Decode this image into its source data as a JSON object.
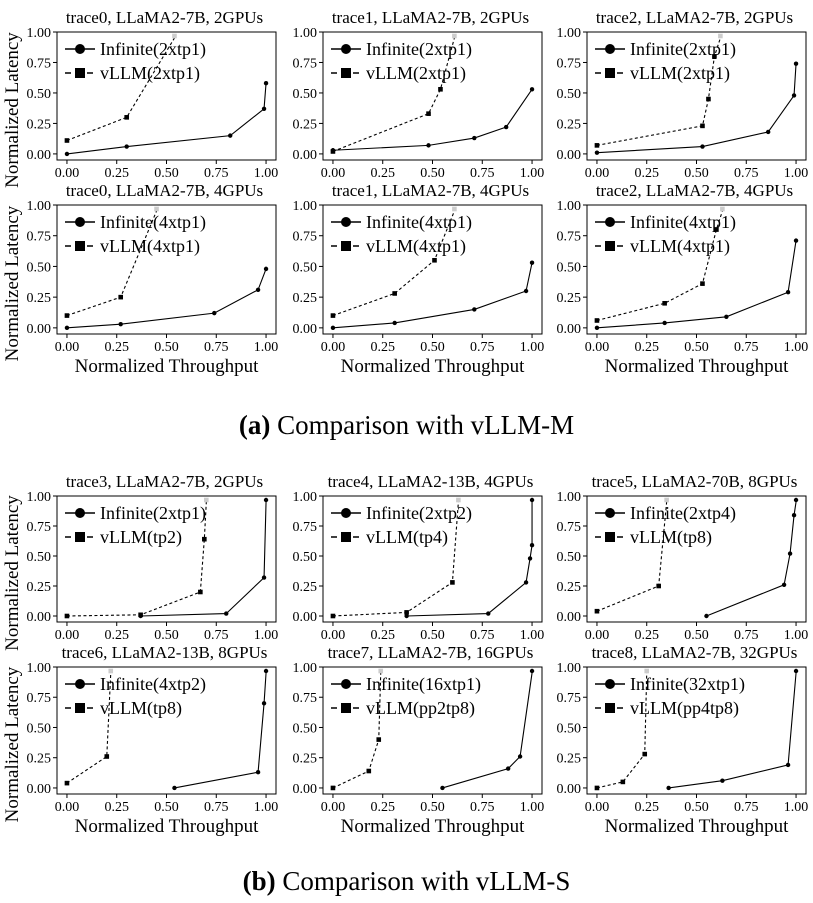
{
  "figure": {
    "y_label": "Normalized Latency",
    "x_label": "Normalized Throughput",
    "caption_a_letter": "(a)",
    "caption_a_text": "Comparison with vLLM-M",
    "caption_b_letter": "(b)",
    "caption_b_text": "Comparison with vLLM-S"
  },
  "colors": {
    "line": "#000000",
    "axis": "#000000",
    "marker_ghost": "#cccccc"
  },
  "chart_data": [
    {
      "type": "line",
      "title": "trace0, LLaMA2-7B, 2GPUs",
      "xlim": [
        -0.05,
        1.05
      ],
      "ylim": [
        -0.05,
        1.0
      ],
      "xticks": [
        "0.00",
        "0.25",
        "0.50",
        "0.75",
        "1.00"
      ],
      "yticks": [
        "0.00",
        "0.25",
        "0.50",
        "0.75",
        "1.00"
      ],
      "xlabel": "",
      "ylabel": "Normalized Latency",
      "legend": "top-left",
      "series": [
        {
          "name": "Infinite(2xtp1)",
          "marker": "circle",
          "style": "solid",
          "x": [
            0.0,
            0.3,
            0.82,
            0.99,
            1.0
          ],
          "y": [
            0.0,
            0.06,
            0.15,
            0.37,
            0.58
          ]
        },
        {
          "name": "vLLM(2xtp1)",
          "marker": "square",
          "style": "dashed",
          "x": [
            0.0,
            0.3,
            0.54
          ],
          "y": [
            0.11,
            0.3,
            1.0
          ]
        }
      ]
    },
    {
      "type": "line",
      "title": "trace1, LLaMA2-7B, 2GPUs",
      "xlim": [
        -0.05,
        1.05
      ],
      "ylim": [
        -0.05,
        1.0
      ],
      "xticks": [
        "0.00",
        "0.25",
        "0.50",
        "0.75",
        "1.00"
      ],
      "yticks": [
        "0.00",
        "0.25",
        "0.50",
        "0.75",
        "1.00"
      ],
      "xlabel": "",
      "ylabel": "",
      "legend": "top-left",
      "series": [
        {
          "name": "Infinite(2xtp1)",
          "marker": "circle",
          "style": "solid",
          "x": [
            0.0,
            0.48,
            0.71,
            0.87,
            1.0
          ],
          "y": [
            0.03,
            0.07,
            0.13,
            0.22,
            0.53
          ]
        },
        {
          "name": "vLLM(2xtp1)",
          "marker": "square",
          "style": "dashed",
          "x": [
            0.0,
            0.48,
            0.54,
            0.61
          ],
          "y": [
            0.02,
            0.33,
            0.53,
            1.0
          ]
        }
      ]
    },
    {
      "type": "line",
      "title": "trace2, LLaMA2-7B, 2GPUs",
      "xlim": [
        -0.05,
        1.05
      ],
      "ylim": [
        -0.05,
        1.0
      ],
      "xticks": [
        "0.00",
        "0.25",
        "0.50",
        "0.75",
        "1.00"
      ],
      "yticks": [
        "0.00",
        "0.25",
        "0.50",
        "0.75",
        "1.00"
      ],
      "xlabel": "",
      "ylabel": "",
      "legend": "top-left",
      "series": [
        {
          "name": "Infinite(2xtp1)",
          "marker": "circle",
          "style": "solid",
          "x": [
            0.0,
            0.53,
            0.86,
            0.99,
            1.0
          ],
          "y": [
            0.01,
            0.06,
            0.18,
            0.48,
            0.74
          ]
        },
        {
          "name": "vLLM(2xtp1)",
          "marker": "square",
          "style": "dashed",
          "x": [
            0.0,
            0.53,
            0.56,
            0.59,
            0.62
          ],
          "y": [
            0.07,
            0.23,
            0.45,
            0.8,
            1.0
          ]
        }
      ]
    },
    {
      "type": "line",
      "title": "trace0, LLaMA2-7B, 4GPUs",
      "xlim": [
        -0.05,
        1.05
      ],
      "ylim": [
        -0.05,
        1.0
      ],
      "xticks": [
        "0.00",
        "0.25",
        "0.50",
        "0.75",
        "1.00"
      ],
      "yticks": [
        "0.00",
        "0.25",
        "0.50",
        "0.75",
        "1.00"
      ],
      "xlabel": "Normalized Throughput",
      "ylabel": "Normalized Latency",
      "legend": "top-left",
      "series": [
        {
          "name": "Infinite(4xtp1)",
          "marker": "circle",
          "style": "solid",
          "x": [
            0.0,
            0.27,
            0.74,
            0.96,
            1.0
          ],
          "y": [
            0.0,
            0.03,
            0.12,
            0.31,
            0.48
          ]
        },
        {
          "name": "vLLM(4xtp1)",
          "marker": "square",
          "style": "dashed",
          "x": [
            0.0,
            0.27,
            0.45
          ],
          "y": [
            0.1,
            0.25,
            1.0
          ]
        }
      ]
    },
    {
      "type": "line",
      "title": "trace1, LLaMA2-7B, 4GPUs",
      "xlim": [
        -0.05,
        1.05
      ],
      "ylim": [
        -0.05,
        1.0
      ],
      "xticks": [
        "0.00",
        "0.25",
        "0.50",
        "0.75",
        "1.00"
      ],
      "yticks": [
        "0.00",
        "0.25",
        "0.50",
        "0.75",
        "1.00"
      ],
      "xlabel": "Normalized Throughput",
      "ylabel": "",
      "legend": "top-left",
      "series": [
        {
          "name": "Infinite(4xtp1)",
          "marker": "circle",
          "style": "solid",
          "x": [
            0.0,
            0.31,
            0.71,
            0.97,
            1.0
          ],
          "y": [
            0.0,
            0.04,
            0.15,
            0.3,
            0.53
          ]
        },
        {
          "name": "vLLM(4xtp1)",
          "marker": "square",
          "style": "dashed",
          "x": [
            0.0,
            0.31,
            0.51,
            0.61
          ],
          "y": [
            0.1,
            0.28,
            0.55,
            1.0
          ]
        }
      ]
    },
    {
      "type": "line",
      "title": "trace2, LLaMA2-7B, 4GPUs",
      "xlim": [
        -0.05,
        1.05
      ],
      "ylim": [
        -0.05,
        1.0
      ],
      "xticks": [
        "0.00",
        "0.25",
        "0.50",
        "0.75",
        "1.00"
      ],
      "yticks": [
        "0.00",
        "0.25",
        "0.50",
        "0.75",
        "1.00"
      ],
      "xlabel": "Normalized Throughput",
      "ylabel": "",
      "legend": "top-left",
      "series": [
        {
          "name": "Infinite(4xtp1)",
          "marker": "circle",
          "style": "solid",
          "x": [
            0.0,
            0.34,
            0.65,
            0.96,
            1.0
          ],
          "y": [
            0.0,
            0.04,
            0.09,
            0.29,
            0.71
          ]
        },
        {
          "name": "vLLM(4xtp1)",
          "marker": "square",
          "style": "dashed",
          "x": [
            0.0,
            0.34,
            0.53,
            0.6,
            0.63
          ],
          "y": [
            0.06,
            0.2,
            0.36,
            0.8,
            1.0
          ]
        }
      ]
    },
    {
      "type": "line",
      "title": "trace3, LLaMA2-7B, 2GPUs",
      "xlim": [
        -0.05,
        1.05
      ],
      "ylim": [
        -0.05,
        1.0
      ],
      "xticks": [
        "0.00",
        "0.25",
        "0.50",
        "0.75",
        "1.00"
      ],
      "yticks": [
        "0.00",
        "0.25",
        "0.50",
        "0.75",
        "1.00"
      ],
      "xlabel": "",
      "ylabel": "Normalized Latency",
      "legend": "top-left",
      "series": [
        {
          "name": "Infinite(2xtp1)",
          "marker": "circle",
          "style": "solid",
          "x": [
            0.37,
            0.8,
            0.99,
            1.0
          ],
          "y": [
            0.0,
            0.02,
            0.32,
            0.99
          ]
        },
        {
          "name": "vLLM(tp2)",
          "marker": "square",
          "style": "dashed",
          "x": [
            0.0,
            0.37,
            0.67,
            0.69,
            0.7
          ],
          "y": [
            0.0,
            0.01,
            0.2,
            0.64,
            1.0
          ]
        }
      ]
    },
    {
      "type": "line",
      "title": "trace4, LLaMA2-13B, 4GPUs",
      "xlim": [
        -0.05,
        1.05
      ],
      "ylim": [
        -0.05,
        1.0
      ],
      "xticks": [
        "0.00",
        "0.25",
        "0.50",
        "0.75",
        "1.00"
      ],
      "yticks": [
        "0.00",
        "0.25",
        "0.50",
        "0.75",
        "1.00"
      ],
      "xlabel": "",
      "ylabel": "",
      "legend": "top-left",
      "series": [
        {
          "name": "Infinite(2xtp2)",
          "marker": "circle",
          "style": "solid",
          "x": [
            0.37,
            0.78,
            0.97,
            0.99,
            1.0,
            1.0
          ],
          "y": [
            0.0,
            0.02,
            0.28,
            0.48,
            0.59,
            0.99
          ]
        },
        {
          "name": "vLLM(tp4)",
          "marker": "square",
          "style": "dashed",
          "x": [
            0.0,
            0.37,
            0.6,
            0.63
          ],
          "y": [
            0.0,
            0.03,
            0.28,
            1.0
          ]
        }
      ]
    },
    {
      "type": "line",
      "title": "trace5, LLaMA2-70B, 8GPUs",
      "xlim": [
        -0.05,
        1.05
      ],
      "ylim": [
        -0.05,
        1.0
      ],
      "xticks": [
        "0.00",
        "0.25",
        "0.50",
        "0.75",
        "1.00"
      ],
      "yticks": [
        "0.00",
        "0.25",
        "0.50",
        "0.75",
        "1.00"
      ],
      "xlabel": "",
      "ylabel": "",
      "legend": "top-left",
      "series": [
        {
          "name": "Infinite(2xtp4)",
          "marker": "circle",
          "style": "solid",
          "x": [
            0.55,
            0.94,
            0.97,
            0.99,
            1.0
          ],
          "y": [
            0.0,
            0.26,
            0.52,
            0.84,
            0.99
          ]
        },
        {
          "name": "vLLM(tp8)",
          "marker": "square",
          "style": "dashed",
          "x": [
            0.0,
            0.31,
            0.35
          ],
          "y": [
            0.04,
            0.25,
            1.0
          ]
        }
      ]
    },
    {
      "type": "line",
      "title": "trace6, LLaMA2-13B, 8GPUs",
      "xlim": [
        -0.05,
        1.05
      ],
      "ylim": [
        -0.05,
        1.0
      ],
      "xticks": [
        "0.00",
        "0.25",
        "0.50",
        "0.75",
        "1.00"
      ],
      "yticks": [
        "0.00",
        "0.25",
        "0.50",
        "0.75",
        "1.00"
      ],
      "xlabel": "Normalized Throughput",
      "ylabel": "Normalized Latency",
      "legend": "top-left",
      "series": [
        {
          "name": "Infinite(4xtp2)",
          "marker": "circle",
          "style": "solid",
          "x": [
            0.54,
            0.96,
            0.99,
            1.0
          ],
          "y": [
            0.0,
            0.13,
            0.7,
            1.0
          ]
        },
        {
          "name": "vLLM(tp8)",
          "marker": "square",
          "style": "dashed",
          "x": [
            0.0,
            0.2,
            0.22
          ],
          "y": [
            0.04,
            0.26,
            1.0
          ]
        }
      ]
    },
    {
      "type": "line",
      "title": "trace7, LLaMA2-7B, 16GPUs",
      "xlim": [
        -0.05,
        1.05
      ],
      "ylim": [
        -0.05,
        1.0
      ],
      "xticks": [
        "0.00",
        "0.25",
        "0.50",
        "0.75",
        "1.00"
      ],
      "yticks": [
        "0.00",
        "0.25",
        "0.50",
        "0.75",
        "1.00"
      ],
      "xlabel": "Normalized Throughput",
      "ylabel": "",
      "legend": "top-left",
      "series": [
        {
          "name": "Infinite(16xtp1)",
          "marker": "circle",
          "style": "solid",
          "x": [
            0.55,
            0.88,
            0.94,
            1.0
          ],
          "y": [
            0.0,
            0.16,
            0.26,
            1.0
          ]
        },
        {
          "name": "vLLM(pp2tp8)",
          "marker": "square",
          "style": "dashed",
          "x": [
            0.0,
            0.18,
            0.23,
            0.24
          ],
          "y": [
            0.0,
            0.14,
            0.4,
            1.0
          ]
        }
      ]
    },
    {
      "type": "line",
      "title": "trace8, LLaMA2-7B, 32GPUs",
      "xlim": [
        -0.05,
        1.05
      ],
      "ylim": [
        -0.05,
        1.0
      ],
      "xticks": [
        "0.00",
        "0.25",
        "0.50",
        "0.75",
        "1.00"
      ],
      "yticks": [
        "0.00",
        "0.25",
        "0.50",
        "0.75",
        "1.00"
      ],
      "xlabel": "Normalized Throughput",
      "ylabel": "",
      "legend": "top-left",
      "series": [
        {
          "name": "Infinite(32xtp1)",
          "marker": "circle",
          "style": "solid",
          "x": [
            0.36,
            0.63,
            0.96,
            1.0
          ],
          "y": [
            0.0,
            0.06,
            0.19,
            1.0
          ]
        },
        {
          "name": "vLLM(pp4tp8)",
          "marker": "square",
          "style": "dashed",
          "x": [
            0.0,
            0.13,
            0.24,
            0.25
          ],
          "y": [
            0.0,
            0.05,
            0.28,
            1.0
          ]
        }
      ]
    }
  ]
}
